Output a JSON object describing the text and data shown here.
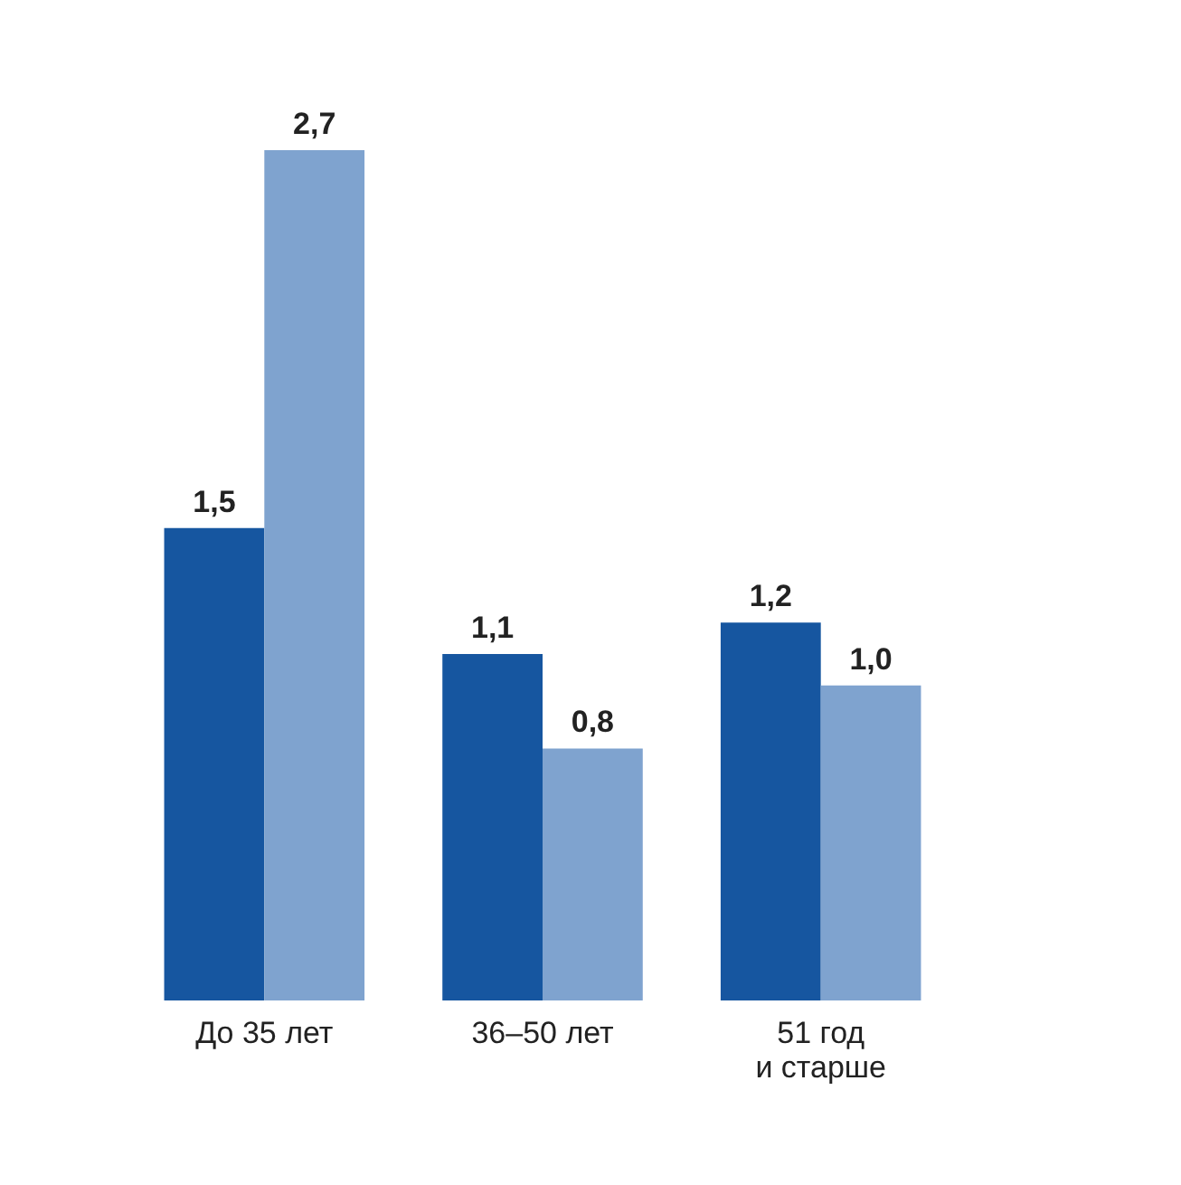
{
  "chart_data": {
    "type": "bar",
    "categories": [
      "До 35 лет",
      "36–50 лет",
      "51 год\nи старше"
    ],
    "series": [
      {
        "color": "#1656a0",
        "values": [
          1.5,
          1.1,
          1.2
        ],
        "value_labels": [
          "1,5",
          "1,1",
          "1,2"
        ]
      },
      {
        "color": "#7fa3cf",
        "values": [
          2.7,
          0.8,
          1.0
        ],
        "value_labels": [
          "2,7",
          "0,8",
          "1,0"
        ]
      }
    ],
    "tick_labels": "x"
  }
}
